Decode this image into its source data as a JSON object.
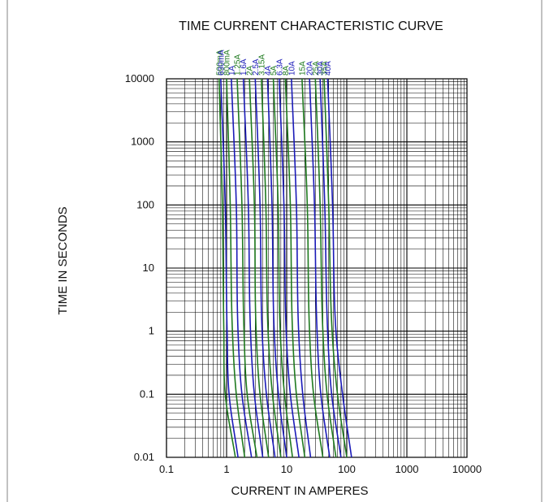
{
  "colors": {
    "blue": "#1a1ab8",
    "green": "#1f7a1f",
    "grid": "#000000",
    "frame": "#9a9a9a"
  },
  "chart_data": {
    "type": "line",
    "title": "TIME CURRENT CHARACTERISTIC CURVE",
    "xlabel": "CURRENT IN AMPERES",
    "ylabel": "TIME IN SECONDS",
    "xscale": "log",
    "yscale": "log",
    "xlim": [
      0.1,
      10000
    ],
    "ylim": [
      0.01,
      10000
    ],
    "xticks": [
      "0.1",
      "1",
      "10",
      "100",
      "1000",
      "10000"
    ],
    "yticks": [
      "10000",
      "1000",
      "100",
      "10",
      "1",
      "0.1",
      "0.01"
    ],
    "grid": true,
    "series": [
      {
        "name": "500mA",
        "color": "green",
        "points": [
          [
            0.75,
            10000
          ],
          [
            0.85,
            100
          ],
          [
            0.9,
            1
          ],
          [
            0.95,
            0.1
          ],
          [
            1.4,
            0.01
          ]
        ]
      },
      {
        "name": "630mA",
        "color": "blue",
        "points": [
          [
            0.8,
            10000
          ],
          [
            0.95,
            100
          ],
          [
            1.02,
            1
          ],
          [
            1.1,
            0.1
          ],
          [
            1.55,
            0.01
          ]
        ]
      },
      {
        "name": "800mA",
        "color": "green",
        "points": [
          [
            1.0,
            10000
          ],
          [
            1.15,
            100
          ],
          [
            1.25,
            1
          ],
          [
            1.45,
            0.1
          ],
          [
            2.0,
            0.01
          ]
        ]
      },
      {
        "name": "1A",
        "color": "blue",
        "points": [
          [
            1.2,
            10000
          ],
          [
            1.45,
            100
          ],
          [
            1.55,
            1
          ],
          [
            1.8,
            0.1
          ],
          [
            2.6,
            0.01
          ]
        ]
      },
      {
        "name": "1.25A",
        "color": "green",
        "points": [
          [
            1.5,
            10000
          ],
          [
            1.8,
            100
          ],
          [
            1.95,
            1
          ],
          [
            2.2,
            0.1
          ],
          [
            3.2,
            0.01
          ]
        ]
      },
      {
        "name": "1.6A",
        "color": "blue",
        "points": [
          [
            1.9,
            10000
          ],
          [
            2.3,
            100
          ],
          [
            2.5,
            1
          ],
          [
            2.9,
            0.1
          ],
          [
            4.0,
            0.01
          ]
        ]
      },
      {
        "name": "2A",
        "color": "green",
        "points": [
          [
            2.4,
            10000
          ],
          [
            2.9,
            100
          ],
          [
            3.1,
            1
          ],
          [
            3.6,
            0.1
          ],
          [
            5.0,
            0.01
          ]
        ]
      },
      {
        "name": "2.5A",
        "color": "blue",
        "points": [
          [
            3.0,
            10000
          ],
          [
            3.6,
            100
          ],
          [
            3.9,
            1
          ],
          [
            4.6,
            0.1
          ],
          [
            6.4,
            0.01
          ]
        ]
      },
      {
        "name": "3.15A",
        "color": "green",
        "points": [
          [
            3.8,
            10000
          ],
          [
            4.5,
            100
          ],
          [
            4.9,
            1
          ],
          [
            5.8,
            0.1
          ],
          [
            8.0,
            0.01
          ]
        ]
      },
      {
        "name": "4A",
        "color": "blue",
        "points": [
          [
            4.8,
            10000
          ],
          [
            5.7,
            100
          ],
          [
            6.2,
            1
          ],
          [
            7.3,
            0.1
          ],
          [
            10,
            0.01
          ]
        ]
      },
      {
        "name": "5A",
        "color": "green",
        "points": [
          [
            6.0,
            10000
          ],
          [
            7.2,
            100
          ],
          [
            7.8,
            1
          ],
          [
            9.2,
            0.1
          ],
          [
            12.5,
            0.01
          ]
        ]
      },
      {
        "name": "6.3A",
        "color": "blue",
        "points": [
          [
            7.5,
            10000
          ],
          [
            9.0,
            100
          ],
          [
            9.8,
            1
          ],
          [
            11.5,
            0.1
          ],
          [
            16,
            0.01
          ]
        ]
      },
      {
        "name": "8A",
        "color": "green",
        "points": [
          [
            9.5,
            10000
          ],
          [
            11.5,
            100
          ],
          [
            12.5,
            1
          ],
          [
            14.5,
            0.1
          ],
          [
            20,
            0.01
          ]
        ]
      },
      {
        "name": "10A",
        "color": "blue",
        "points": [
          [
            12,
            10000
          ],
          [
            14.5,
            100
          ],
          [
            15.8,
            1
          ],
          [
            18.5,
            0.1
          ],
          [
            25,
            0.01
          ]
        ]
      },
      {
        "name": "15A",
        "color": "green",
        "points": [
          [
            18,
            10000
          ],
          [
            22,
            100
          ],
          [
            24,
            1
          ],
          [
            28,
            0.1
          ],
          [
            40,
            0.01
          ]
        ]
      },
      {
        "name": "20A",
        "color": "blue",
        "points": [
          [
            24,
            10000
          ],
          [
            29,
            100
          ],
          [
            32,
            1
          ],
          [
            37,
            0.1
          ],
          [
            52,
            0.01
          ]
        ]
      },
      {
        "name": "25A",
        "color": "green",
        "points": [
          [
            30,
            10000
          ],
          [
            36,
            100
          ],
          [
            40,
            1
          ],
          [
            47,
            0.1
          ],
          [
            66,
            0.01
          ]
        ]
      },
      {
        "name": "30A",
        "color": "blue",
        "points": [
          [
            36,
            10000
          ],
          [
            43,
            100
          ],
          [
            48,
            1
          ],
          [
            56,
            0.1
          ],
          [
            80,
            0.01
          ]
        ]
      },
      {
        "name": "35A",
        "color": "green",
        "points": [
          [
            42,
            10000
          ],
          [
            50,
            100
          ],
          [
            57,
            1
          ],
          [
            70,
            0.1
          ],
          [
            100,
            0.01
          ]
        ]
      },
      {
        "name": "40A",
        "color": "blue",
        "points": [
          [
            48,
            10000
          ],
          [
            58,
            100
          ],
          [
            66,
            1
          ],
          [
            85,
            0.1
          ],
          [
            120,
            0.01
          ]
        ]
      }
    ]
  }
}
